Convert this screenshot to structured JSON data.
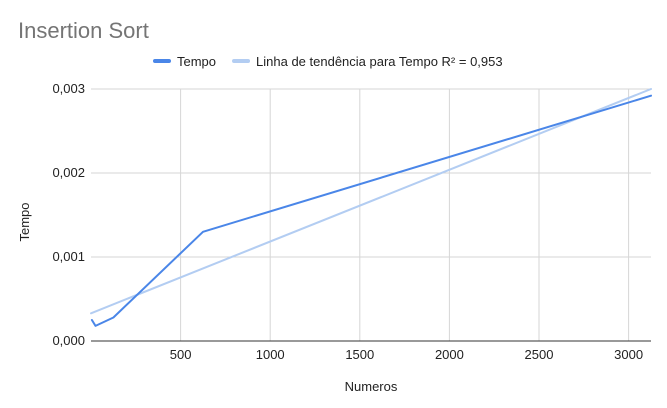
{
  "chart_data": {
    "type": "line",
    "title": "Insertion Sort",
    "xlabel": "Numeros",
    "ylabel": "Tempo",
    "xlim": [
      0,
      3125
    ],
    "ylim": [
      0,
      0.003
    ],
    "x_ticks": [
      500,
      1000,
      1500,
      2000,
      2500,
      3000
    ],
    "x_tick_labels": [
      "500",
      "1000",
      "1500",
      "2000",
      "2500",
      "3000"
    ],
    "y_ticks": [
      0,
      0.001,
      0.002,
      0.003
    ],
    "y_tick_labels": [
      "0,000",
      "0,001",
      "0,002",
      "0,003"
    ],
    "grid": true,
    "legend_position": "top",
    "series": [
      {
        "name": "Tempo",
        "color": "#4a86e8",
        "x": [
          5,
          25,
          125,
          625,
          3125
        ],
        "y": [
          0.00025,
          0.00018,
          0.00028,
          0.0013,
          0.00292
        ]
      },
      {
        "name": "Linha de tendência para Tempo R² = 0,953",
        "color": "#b3cdf2",
        "x": [
          0,
          3125
        ],
        "y": [
          0.00033,
          0.003
        ]
      }
    ]
  }
}
